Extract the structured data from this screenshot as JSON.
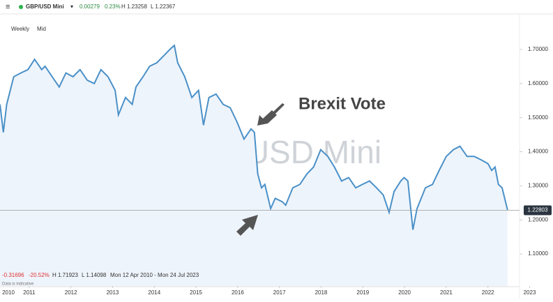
{
  "header": {
    "symbol": "GBP/USD Mini",
    "change": "0.00279",
    "change_pct": "0.23%",
    "high": "H 1.23258",
    "low": "L 1.22367",
    "interval": "Weekly",
    "price_type": "Mid"
  },
  "footer": {
    "change": "-0.31696",
    "change_pct": "-20.52%",
    "high": "H 1.71923",
    "low": "L 1.14098",
    "range": "Mon 12 Apr 2010 - Mon 24 Jul 2023",
    "note": "Data is indicative"
  },
  "chart_data": {
    "type": "line",
    "watermark": "GBP/USD Mini",
    "annotation": "Brexit Vote",
    "color": "#4a90c8",
    "x": [
      2010.3,
      2010.38,
      2010.46,
      2010.63,
      2010.8,
      2010.97,
      2011.13,
      2011.3,
      2011.38,
      2011.55,
      2011.72,
      2011.88,
      2012.05,
      2012.22,
      2012.39,
      2012.56,
      2012.72,
      2012.89,
      2013.06,
      2013.14,
      2013.31,
      2013.47,
      2013.56,
      2013.73,
      2013.89,
      2014.06,
      2014.23,
      2014.39,
      2014.48,
      2014.56,
      2014.73,
      2014.9,
      2015.06,
      2015.18,
      2015.31,
      2015.48,
      2015.65,
      2015.82,
      2015.98,
      2016.15,
      2016.32,
      2016.4,
      2016.48,
      2016.57,
      2016.65,
      2016.79,
      2016.9,
      2017.07,
      2017.15,
      2017.32,
      2017.49,
      2017.66,
      2017.82,
      2017.99,
      2018.16,
      2018.32,
      2018.49,
      2018.66,
      2018.83,
      2018.99,
      2019.16,
      2019.33,
      2019.49,
      2019.63,
      2019.75,
      2019.91,
      2019.99,
      2020.08,
      2020.2,
      2020.3,
      2020.5,
      2020.67,
      2020.83,
      2021.0,
      2021.17,
      2021.33,
      2021.5,
      2021.67,
      2021.84,
      2022.0,
      2022.09,
      2022.17,
      2022.25,
      2022.34,
      2022.47
    ],
    "values": [
      1.539,
      1.457,
      1.539,
      1.62,
      1.631,
      1.641,
      1.671,
      1.641,
      1.651,
      1.62,
      1.59,
      1.631,
      1.62,
      1.641,
      1.61,
      1.6,
      1.641,
      1.62,
      1.58,
      1.508,
      1.559,
      1.539,
      1.59,
      1.62,
      1.651,
      1.661,
      1.682,
      1.702,
      1.712,
      1.661,
      1.62,
      1.559,
      1.58,
      1.478,
      1.559,
      1.569,
      1.539,
      1.529,
      1.488,
      1.437,
      1.467,
      1.457,
      1.335,
      1.294,
      1.304,
      1.233,
      1.263,
      1.253,
      1.243,
      1.294,
      1.304,
      1.335,
      1.355,
      1.406,
      1.386,
      1.355,
      1.314,
      1.324,
      1.294,
      1.304,
      1.314,
      1.294,
      1.273,
      1.222,
      1.283,
      1.314,
      1.324,
      1.314,
      1.171,
      1.233,
      1.294,
      1.304,
      1.345,
      1.386,
      1.406,
      1.416,
      1.386,
      1.386,
      1.376,
      1.365,
      1.345,
      1.355,
      1.304,
      1.294,
      1.229
    ],
    "last_price": 1.22803,
    "xlim": [
      2010.3,
      2023.56
    ],
    "ylim": [
      1.006,
      1.794
    ],
    "xticks": [
      2010,
      2011,
      2012,
      2013,
      2014,
      2015,
      2016,
      2017,
      2018,
      2019,
      2020,
      2021,
      2022,
      2023
    ],
    "yticks": [
      {
        "value": 1.1,
        "label": "1.10000"
      },
      {
        "value": 1.2,
        "label": "1.20000"
      },
      {
        "value": 1.3,
        "label": "1.30000"
      },
      {
        "value": 1.4,
        "label": "1.40000"
      },
      {
        "value": 1.5,
        "label": "1.50000"
      },
      {
        "value": 1.6,
        "label": "1.60000"
      },
      {
        "value": 1.7,
        "label": "1.70000"
      }
    ]
  }
}
